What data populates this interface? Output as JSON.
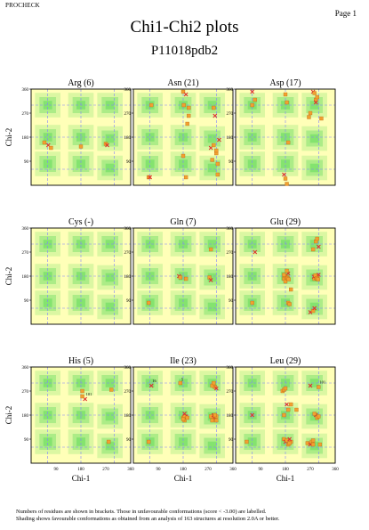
{
  "header": {
    "program": "PROCHECK",
    "page_label": "Page 1",
    "title": "Chi1-Chi2 plots",
    "subtitle": "P11018pdb2"
  },
  "footer": {
    "line1": "Numbers of residues are shown in brackets. Those in unfavourable conformations (score < -3.00) are labelled.",
    "line2": "Shading shows favourable conformations as obtained from an analysis of 163 structures at resolution 2.0A or better."
  },
  "colors": {
    "background_region": "#ffffb8",
    "favourable_shading": "#7de26b",
    "grid_dash": "#8080ff",
    "point_favourable": "#f2a030",
    "point_unfavourable": "#e03030"
  },
  "chart_data": [
    {
      "type": "scatter",
      "title": "Arg (6)",
      "xlabel": "",
      "ylabel": "Chi-2",
      "xlim": [
        0,
        360
      ],
      "ylim": [
        0,
        360
      ],
      "xticks": [],
      "yticks": [
        "90",
        "180",
        "270",
        "360"
      ],
      "points": [
        [
          48,
          160
        ],
        [
          62,
          150
        ],
        [
          72,
          140
        ],
        [
          180,
          145
        ],
        [
          270,
          155
        ],
        [
          275,
          150
        ]
      ],
      "labels": []
    },
    {
      "type": "scatter",
      "title": "Asn (21)",
      "xlabel": "",
      "ylabel": "",
      "xlim": [
        0,
        360
      ],
      "ylim": [
        0,
        360
      ],
      "xticks": [],
      "yticks": [
        "90",
        "180",
        "270",
        "360"
      ],
      "points": [
        [
          55,
          30
        ],
        [
          60,
          30
        ],
        [
          65,
          300
        ],
        [
          180,
          350
        ],
        [
          182,
          300
        ],
        [
          190,
          340
        ],
        [
          200,
          290
        ],
        [
          195,
          230
        ],
        [
          200,
          260
        ],
        [
          280,
          140
        ],
        [
          285,
          95
        ],
        [
          290,
          150
        ],
        [
          290,
          290
        ],
        [
          295,
          260
        ],
        [
          300,
          120
        ],
        [
          305,
          40
        ],
        [
          300,
          130
        ],
        [
          310,
          170
        ],
        [
          305,
          80
        ],
        [
          190,
          30
        ],
        [
          180,
          110
        ]
      ],
      "labels": []
    },
    {
      "type": "scatter",
      "title": "Asp (17)",
      "xlabel": "",
      "ylabel": "",
      "xlim": [
        0,
        360
      ],
      "ylim": [
        0,
        360
      ],
      "xticks": [],
      "yticks": [
        "90",
        "180",
        "270",
        "360"
      ],
      "points": [
        [
          60,
          300
        ],
        [
          60,
          350
        ],
        [
          70,
          320
        ],
        [
          180,
          340
        ],
        [
          185,
          310
        ],
        [
          175,
          40
        ],
        [
          180,
          25
        ],
        [
          185,
          5
        ],
        [
          190,
          160
        ],
        [
          280,
          350
        ],
        [
          285,
          345
        ],
        [
          290,
          320
        ],
        [
          295,
          330
        ],
        [
          290,
          310
        ],
        [
          310,
          250
        ],
        [
          270,
          270
        ],
        [
          265,
          255
        ]
      ],
      "labels": []
    },
    {
      "type": "scatter",
      "title": "Cys (-)",
      "xlabel": "",
      "ylabel": "Chi-2",
      "xlim": [
        0,
        360
      ],
      "ylim": [
        0,
        360
      ],
      "xticks": [],
      "yticks": [
        "90",
        "180",
        "270",
        "360"
      ],
      "points": [],
      "labels": []
    },
    {
      "type": "scatter",
      "title": "Gln (7)",
      "xlabel": "",
      "ylabel": "",
      "xlim": [
        0,
        360
      ],
      "ylim": [
        0,
        360
      ],
      "xticks": [],
      "yticks": [
        "90",
        "180",
        "270",
        "360"
      ],
      "points": [
        [
          55,
          80
        ],
        [
          165,
          180
        ],
        [
          170,
          175
        ],
        [
          190,
          170
        ],
        [
          275,
          175
        ],
        [
          280,
          165
        ],
        [
          280,
          280
        ]
      ],
      "labels": []
    },
    {
      "type": "scatter",
      "title": "Glu (29)",
      "xlabel": "",
      "ylabel": "",
      "xlim": [
        0,
        360
      ],
      "ylim": [
        0,
        360
      ],
      "xticks": [],
      "yticks": [
        "90",
        "180",
        "270",
        "360"
      ],
      "points": [
        [
          60,
          80
        ],
        [
          70,
          270
        ],
        [
          175,
          170
        ],
        [
          180,
          180
        ],
        [
          185,
          175
        ],
        [
          190,
          190
        ],
        [
          190,
          80
        ],
        [
          195,
          75
        ],
        [
          200,
          130
        ],
        [
          270,
          45
        ],
        [
          280,
          280
        ],
        [
          290,
          310
        ],
        [
          295,
          320
        ],
        [
          300,
          290
        ],
        [
          285,
          170
        ],
        [
          290,
          175
        ],
        [
          295,
          180
        ],
        [
          300,
          185
        ],
        [
          180,
          160
        ],
        [
          185,
          200
        ],
        [
          280,
          50
        ],
        [
          285,
          60
        ],
        [
          175,
          185
        ],
        [
          188,
          172
        ],
        [
          192,
          168
        ],
        [
          283,
          178
        ],
        [
          288,
          183
        ],
        [
          293,
          172
        ],
        [
          298,
          168
        ]
      ],
      "labels": []
    },
    {
      "type": "scatter",
      "title": "His (5)",
      "xlabel": "Chi-1",
      "ylabel": "Chi-2",
      "xlim": [
        0,
        360
      ],
      "ylim": [
        0,
        360
      ],
      "xticks": [
        "90",
        "180",
        "270",
        "360"
      ],
      "yticks": [
        "90",
        "180",
        "270",
        "360"
      ],
      "points": [
        [
          185,
          270
        ],
        [
          195,
          240
        ],
        [
          185,
          250
        ],
        [
          280,
          80
        ],
        [
          290,
          275
        ]
      ],
      "labels": [
        {
          "text": "101",
          "x": 195,
          "y": 250
        }
      ]
    },
    {
      "type": "scatter",
      "title": "Ile (23)",
      "xlabel": "Chi-1",
      "ylabel": "",
      "xlim": [
        0,
        360
      ],
      "ylim": [
        0,
        360
      ],
      "xticks": [
        "90",
        "180",
        "270",
        "360"
      ],
      "yticks": [
        "90",
        "180",
        "270",
        "360"
      ],
      "points": [
        [
          55,
          80
        ],
        [
          65,
          290
        ],
        [
          170,
          300
        ],
        [
          180,
          170
        ],
        [
          185,
          160
        ],
        [
          190,
          175
        ],
        [
          185,
          175
        ],
        [
          195,
          170
        ],
        [
          290,
          170
        ],
        [
          295,
          165
        ],
        [
          300,
          175
        ],
        [
          280,
          175
        ],
        [
          285,
          160
        ],
        [
          290,
          180
        ],
        [
          300,
          160
        ],
        [
          290,
          290
        ],
        [
          295,
          285
        ],
        [
          300,
          280
        ],
        [
          285,
          290
        ],
        [
          290,
          300
        ],
        [
          295,
          180
        ],
        [
          185,
          185
        ],
        [
          180,
          165
        ]
      ],
      "labels": [
        {
          "text": "16",
          "x": 65,
          "y": 300
        },
        {
          "text": "5",
          "x": 170,
          "y": 305
        }
      ]
    },
    {
      "type": "scatter",
      "title": "Leu (29)",
      "xlabel": "Chi-1",
      "ylabel": "",
      "xlim": [
        0,
        360
      ],
      "ylim": [
        0,
        360
      ],
      "xticks": [
        "90",
        "180",
        "270",
        "360"
      ],
      "yticks": [
        "90",
        "180",
        "270",
        "360"
      ],
      "points": [
        [
          40,
          80
        ],
        [
          60,
          180
        ],
        [
          170,
          270
        ],
        [
          175,
          275
        ],
        [
          180,
          280
        ],
        [
          185,
          220
        ],
        [
          190,
          200
        ],
        [
          200,
          80
        ],
        [
          175,
          90
        ],
        [
          180,
          80
        ],
        [
          185,
          85
        ],
        [
          190,
          70
        ],
        [
          195,
          75
        ],
        [
          195,
          90
        ],
        [
          200,
          220
        ],
        [
          220,
          200
        ],
        [
          260,
          75
        ],
        [
          270,
          70
        ],
        [
          275,
          80
        ],
        [
          280,
          70
        ],
        [
          300,
          285
        ],
        [
          290,
          180
        ],
        [
          295,
          170
        ],
        [
          300,
          175
        ],
        [
          285,
          185
        ],
        [
          270,
          290
        ],
        [
          280,
          85
        ],
        [
          175,
          180
        ],
        [
          305,
          70
        ]
      ],
      "labels": [
        {
          "text": "101",
          "x": 300,
          "y": 295
        }
      ]
    }
  ]
}
